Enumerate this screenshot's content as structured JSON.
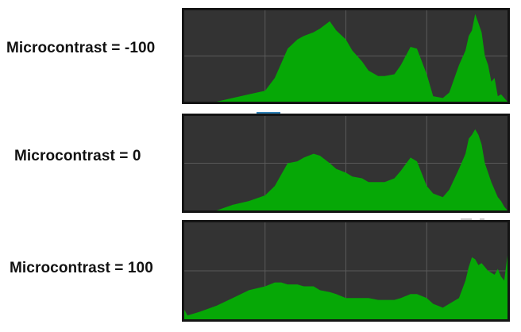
{
  "colors": {
    "panel_background": "#333333",
    "panel_frame": "#141414",
    "grid_lines": "#5a5a5a",
    "histogram_fill": "#06a806",
    "tab_accent": "#2e80b5"
  },
  "chart_data": [
    {
      "type": "area",
      "label": "Microcontrast = -100",
      "x": [
        0,
        5,
        10,
        15,
        20,
        25,
        28,
        30,
        32,
        35,
        37,
        40,
        42,
        45,
        47,
        50,
        52,
        55,
        57,
        60,
        62,
        65,
        67,
        70,
        72,
        75,
        77,
        80,
        82,
        85,
        87,
        88,
        89,
        90,
        91,
        92,
        93,
        94,
        95,
        96,
        97,
        98,
        99,
        100
      ],
      "values": [
        0,
        0,
        0,
        4,
        8,
        12,
        26,
        42,
        58,
        68,
        72,
        76,
        80,
        88,
        78,
        68,
        56,
        44,
        34,
        28,
        28,
        30,
        40,
        60,
        58,
        30,
        6,
        4,
        10,
        40,
        56,
        72,
        78,
        96,
        86,
        76,
        50,
        40,
        22,
        26,
        6,
        8,
        4,
        0
      ],
      "xlim": [
        0,
        100
      ],
      "ylim": [
        0,
        100
      ],
      "grid": true,
      "grid_lines": {
        "vertical": 4,
        "horizontal": 2
      }
    },
    {
      "type": "area",
      "label": "Microcontrast = 0",
      "x": [
        0,
        5,
        10,
        15,
        20,
        25,
        28,
        30,
        32,
        35,
        37,
        40,
        42,
        45,
        47,
        50,
        52,
        55,
        57,
        60,
        62,
        65,
        67,
        70,
        72,
        75,
        77,
        80,
        82,
        85,
        87,
        88,
        89,
        90,
        91,
        92,
        93,
        94,
        95,
        96,
        97,
        98,
        99,
        100
      ],
      "values": [
        0,
        0,
        0,
        6,
        10,
        16,
        26,
        38,
        50,
        52,
        56,
        60,
        58,
        50,
        44,
        40,
        36,
        34,
        30,
        30,
        30,
        34,
        42,
        56,
        52,
        26,
        18,
        14,
        22,
        44,
        60,
        76,
        80,
        86,
        80,
        70,
        50,
        40,
        30,
        22,
        14,
        10,
        4,
        0
      ],
      "xlim": [
        0,
        100
      ],
      "ylim": [
        0,
        100
      ],
      "grid": true,
      "grid_lines": {
        "vertical": 4,
        "horizontal": 2
      }
    },
    {
      "type": "area",
      "label": "Microcontrast = 100",
      "x": [
        0,
        1,
        3,
        5,
        10,
        15,
        20,
        25,
        28,
        30,
        32,
        35,
        37,
        40,
        42,
        45,
        47,
        50,
        52,
        55,
        57,
        60,
        62,
        65,
        67,
        70,
        72,
        75,
        77,
        80,
        82,
        85,
        87,
        88,
        89,
        90,
        91,
        92,
        93,
        94,
        95,
        96,
        97,
        98,
        99,
        100
      ],
      "values": [
        10,
        4,
        6,
        8,
        14,
        22,
        30,
        34,
        38,
        38,
        36,
        36,
        34,
        34,
        30,
        28,
        26,
        22,
        22,
        22,
        22,
        20,
        20,
        20,
        22,
        26,
        26,
        22,
        16,
        12,
        16,
        22,
        40,
        54,
        64,
        62,
        56,
        58,
        54,
        50,
        48,
        46,
        52,
        44,
        40,
        66
      ],
      "xlim": [
        0,
        100
      ],
      "ylim": [
        0,
        100
      ],
      "grid": true,
      "grid_lines": {
        "vertical": 4,
        "horizontal": 2
      }
    }
  ]
}
